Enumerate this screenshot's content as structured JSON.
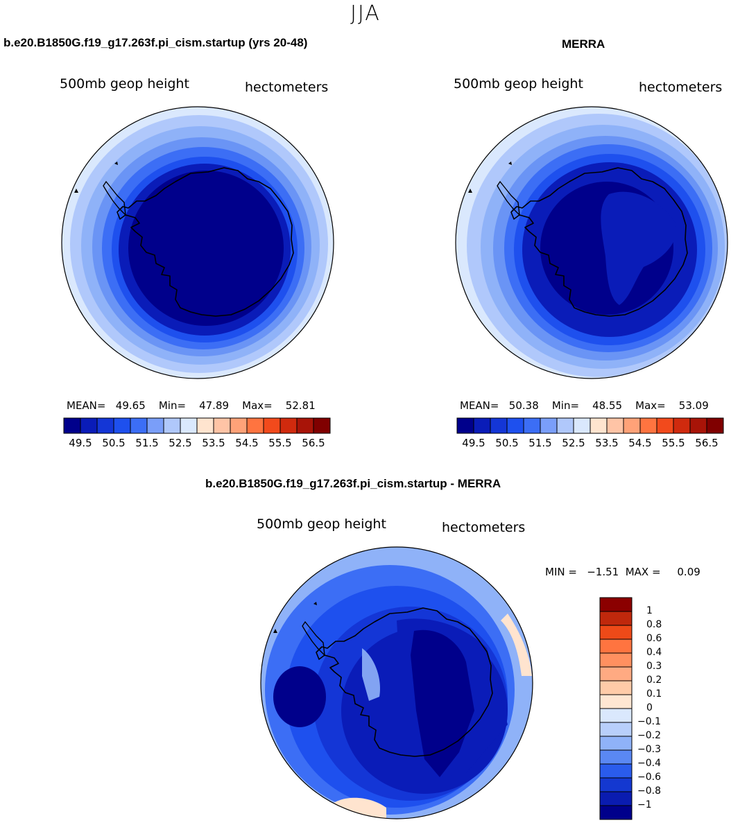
{
  "season": "JJA",
  "panels": [
    {
      "title": "b.e20.B1850G.f19_g17.263f.pi_cism.startup (yrs 20-48)",
      "variable": "500mb geop height",
      "units": "hectometers",
      "mean_label": "MEAN=",
      "mean": "49.65",
      "min_label": "Min=",
      "min": "47.89",
      "max_label": "Max=",
      "max": "52.81"
    },
    {
      "title": "MERRA",
      "variable": "500mb geop height",
      "units": "hectometers",
      "mean_label": "MEAN=",
      "mean": "50.38",
      "min_label": "Min=",
      "min": "48.55",
      "max_label": "Max=",
      "max": "53.09"
    }
  ],
  "diff": {
    "title": "b.e20.B1850G.f19_g17.263f.pi_cism.startup - MERRA",
    "variable": "500mb geop height",
    "units": "hectometers",
    "minmax": "MIN =   −1.51  MAX =     0.09"
  },
  "colorbar_main": {
    "colors": [
      "#00008b",
      "#0a1cb8",
      "#1436d6",
      "#1e50ee",
      "#3c6ef5",
      "#7a9ef9",
      "#b0c8fb",
      "#dae8fd",
      "#ffe4cf",
      "#ffc4a6",
      "#ffa278",
      "#ff7440",
      "#f24a1c",
      "#d02a0e",
      "#a81408",
      "#800000"
    ],
    "labels": [
      "49.5",
      "50.5",
      "51.5",
      "52.5",
      "53.5",
      "54.5",
      "55.5",
      "56.5"
    ]
  },
  "colorbar_diff": {
    "colors": [
      "#8b0000",
      "#c0280c",
      "#ee4a18",
      "#ff7440",
      "#ff9060",
      "#ffaa82",
      "#ffcba8",
      "#ffe6d2",
      "#dae8fd",
      "#b8cffb",
      "#8fb2f8",
      "#5a88f3",
      "#2a5cec",
      "#1438d0",
      "#0a1cb0",
      "#00008b"
    ],
    "labels": [
      "1",
      "0.8",
      "0.6",
      "0.4",
      "0.3",
      "0.2",
      "0.1",
      "0",
      "−0.1",
      "−0.2",
      "−0.3",
      "−0.4",
      "−0.6",
      "−0.8",
      "−1"
    ]
  },
  "map_colors": {
    "ring": [
      "#dae8fd",
      "#b0c8fb",
      "#8fb2f8",
      "#6a94f5",
      "#3c6ef5",
      "#1e50ee",
      "#0a1cb8",
      "#00008b"
    ],
    "diff": [
      "#8fb2f8",
      "#3c6ef5",
      "#1e50ee",
      "#1436d6",
      "#0a1cb8",
      "#00008b"
    ],
    "warm": "#ffe4cf"
  }
}
